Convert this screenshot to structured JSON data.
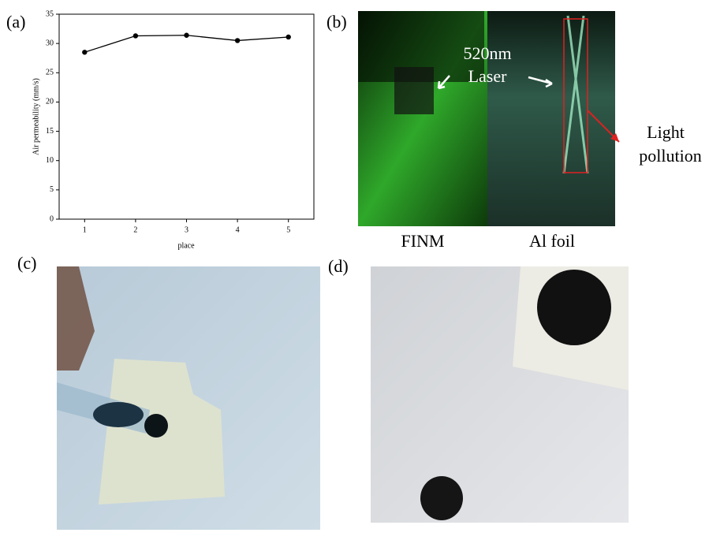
{
  "chart_data": {
    "type": "line",
    "xlabel": "place",
    "ylabel": "Air permeability (mm/s)",
    "x": [
      1,
      2,
      3,
      4,
      5
    ],
    "values": [
      28.5,
      31.3,
      31.4,
      30.5,
      31.1
    ],
    "color": "#000000",
    "xlim": [
      0.5,
      5.5
    ],
    "xticks": [
      1,
      2,
      3,
      4,
      5
    ],
    "ylim": [
      0,
      35
    ],
    "yticks": [
      0,
      5,
      10,
      15,
      20,
      25,
      30,
      35
    ]
  },
  "panels": {
    "a": "(a)",
    "b": "(b)",
    "c": "(c)",
    "d": "(d)"
  },
  "photo_b": {
    "wavelength": "520nm",
    "laser": "Laser",
    "light": "Light",
    "pollution": "pollution",
    "left_caption": "FINM",
    "right_caption": "Al foil"
  }
}
